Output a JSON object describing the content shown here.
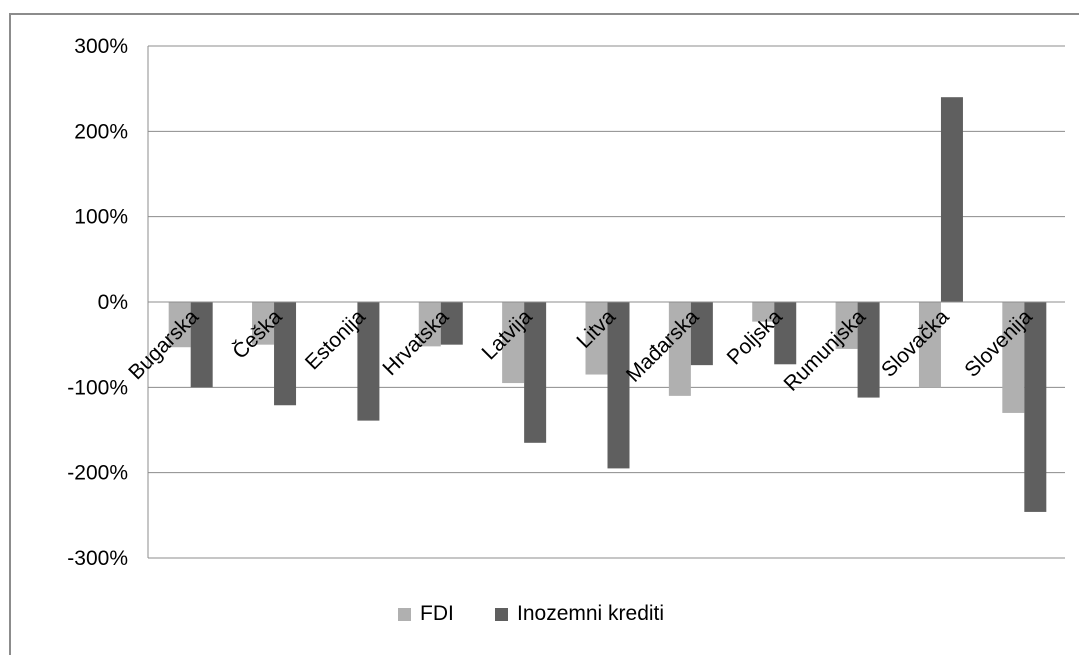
{
  "chart_data": {
    "type": "bar",
    "categories": [
      "Bugarska",
      "Češka",
      "Estonija",
      "Hrvatska",
      "Latvija",
      "Litva",
      "Mađarska",
      "Poljska",
      "Rumunjska",
      "Slovačka",
      "Slovenija"
    ],
    "series": [
      {
        "name": "FDI",
        "color": "#b0b0b0",
        "values": [
          -53,
          -50,
          0,
          -52,
          -95,
          -85,
          -110,
          -23,
          -55,
          -100,
          -130
        ]
      },
      {
        "name": "Inozemni krediti",
        "color": "#5f5f5f",
        "values": [
          -100,
          -121,
          -139,
          -50,
          -165,
          -195,
          -74,
          -73,
          -112,
          240,
          -246
        ]
      }
    ],
    "yticks": [
      "300%",
      "200%",
      "100%",
      "0%",
      "-100%",
      "-200%",
      "-300%"
    ],
    "ylim": [
      -300,
      300
    ],
    "grid": true,
    "legend_position": "bottom"
  }
}
